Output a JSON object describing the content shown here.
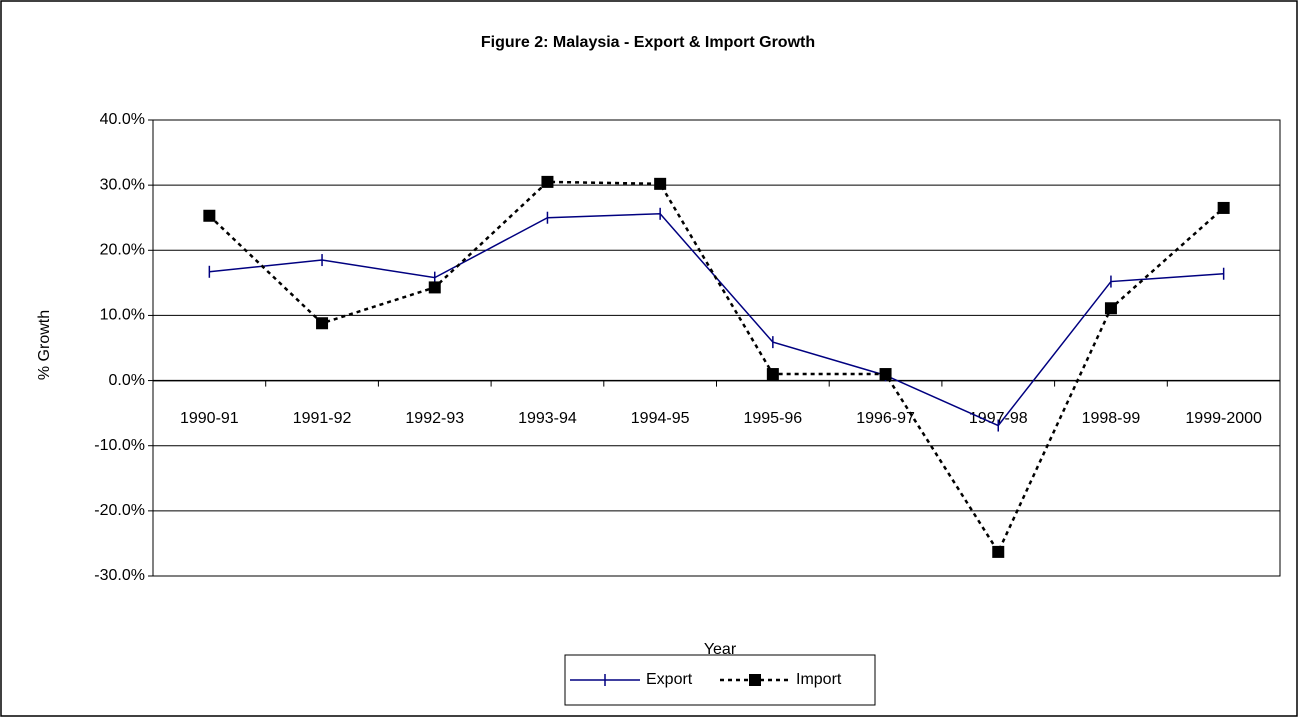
{
  "chart_data": {
    "type": "line",
    "title": "Figure 2: Malaysia - Export & Import Growth",
    "x_label": "Year",
    "y_label": "% Growth",
    "categories": [
      "1990-91",
      "1991-92",
      "1992-93",
      "1993-94",
      "1994-95",
      "1995-96",
      "1996-97",
      "1997-98",
      "1998-99",
      "1999-2000"
    ],
    "series": [
      {
        "name": "Export",
        "color": "#000080",
        "values": [
          16.7,
          18.5,
          15.8,
          25.0,
          25.6,
          5.9,
          0.8,
          -6.9,
          15.2,
          16.4
        ]
      },
      {
        "name": "Import",
        "color": "#000000",
        "values": [
          25.3,
          8.8,
          14.3,
          30.5,
          30.2,
          1.0,
          1.0,
          -26.3,
          11.1,
          26.5
        ]
      }
    ],
    "ylim": [
      -30,
      40
    ],
    "yticks": [
      {
        "value": -30,
        "label": "-30.0%"
      },
      {
        "value": -20,
        "label": "-20.0%"
      },
      {
        "value": -10,
        "label": "-10.0%"
      },
      {
        "value": 0,
        "label": "0.0%"
      },
      {
        "value": 10,
        "label": "10.0%"
      },
      {
        "value": 20,
        "label": "20.0%"
      },
      {
        "value": 30,
        "label": "30.0%"
      },
      {
        "value": 40,
        "label": "40.0%"
      }
    ],
    "grid": true,
    "legend": "bottom"
  }
}
